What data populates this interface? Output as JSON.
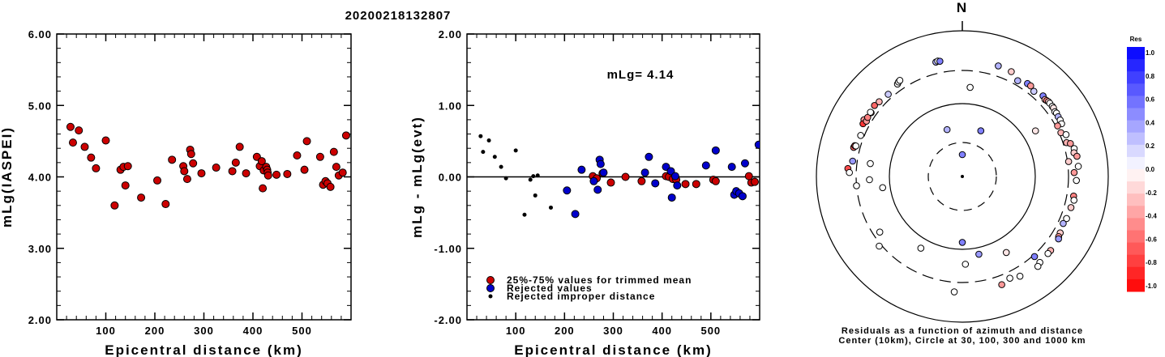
{
  "title": "20200218132807",
  "chart_data": [
    {
      "type": "scatter",
      "xlabel": "Epicentral distance (km)",
      "ylabel": "mLg(IASPEI)",
      "xlim": [
        0,
        600
      ],
      "ylim": [
        2.0,
        6.0
      ],
      "xticks": [
        "100",
        "200",
        "300",
        "400",
        "500"
      ],
      "yticks": [
        "2.00",
        "3.00",
        "4.00",
        "5.00",
        "6.00"
      ],
      "series": [
        {
          "color": "#cc0000",
          "points": [
            [
              28,
              4.7
            ],
            [
              33,
              4.48
            ],
            [
              45,
              4.65
            ],
            [
              57,
              4.42
            ],
            [
              70,
              4.27
            ],
            [
              80,
              4.12
            ],
            [
              100,
              4.51
            ],
            [
              118,
              3.6
            ],
            [
              130,
              4.1
            ],
            [
              136,
              4.14
            ],
            [
              140,
              3.88
            ],
            [
              145,
              4.15
            ],
            [
              172,
              3.71
            ],
            [
              205,
              3.95
            ],
            [
              222,
              3.62
            ],
            [
              235,
              4.24
            ],
            [
              258,
              4.15
            ],
            [
              260,
              4.08
            ],
            [
              266,
              3.97
            ],
            [
              272,
              4.38
            ],
            [
              274,
              4.32
            ],
            [
              278,
              4.19
            ],
            [
              295,
              4.05
            ],
            [
              325,
              4.13
            ],
            [
              358,
              4.08
            ],
            [
              365,
              4.2
            ],
            [
              373,
              4.42
            ],
            [
              386,
              4.05
            ],
            [
              408,
              4.28
            ],
            [
              414,
              4.15
            ],
            [
              418,
              4.22
            ],
            [
              420,
              3.84
            ],
            [
              422,
              4.09
            ],
            [
              427,
              4.14
            ],
            [
              429,
              4.1
            ],
            [
              430,
              4.06
            ],
            [
              431,
              4.02
            ],
            [
              448,
              4.03
            ],
            [
              470,
              4.04
            ],
            [
              490,
              4.3
            ],
            [
              505,
              4.1
            ],
            [
              510,
              4.5
            ],
            [
              537,
              4.28
            ],
            [
              543,
              3.89
            ],
            [
              548,
              3.94
            ],
            [
              552,
              3.91
            ],
            [
              558,
              3.86
            ],
            [
              565,
              4.35
            ],
            [
              570,
              4.14
            ],
            [
              575,
              4.02
            ],
            [
              583,
              4.06
            ],
            [
              590,
              4.58
            ]
          ]
        }
      ]
    },
    {
      "type": "scatter",
      "xlabel": "Epicentral distance (km)",
      "ylabel": "mLg - mLg(evt)",
      "xlim": [
        0,
        600
      ],
      "ylim": [
        -2.0,
        2.0
      ],
      "xticks": [
        "100",
        "200",
        "300",
        "400",
        "500"
      ],
      "yticks": [
        "-2.00",
        "-1.00",
        "0.00",
        "1.00",
        "2.00"
      ],
      "annotation": "mLg= 4.14",
      "series": [
        {
          "name": "25%-75% values for trimmed mean",
          "color": "#cc0000",
          "points": [
            [
              258,
              0.01
            ],
            [
              266,
              -0.02
            ],
            [
              278,
              0.05
            ],
            [
              295,
              -0.08
            ],
            [
              325,
              0.0
            ],
            [
              358,
              -0.06
            ],
            [
              408,
              0.01
            ],
            [
              414,
              0.0
            ],
            [
              422,
              -0.03
            ],
            [
              429,
              -0.04
            ],
            [
              448,
              -0.1
            ],
            [
              470,
              -0.1
            ],
            [
              505,
              -0.04
            ],
            [
              510,
              -0.06
            ],
            [
              583,
              -0.08
            ],
            [
              590,
              -0.07
            ],
            [
              578,
              0.01
            ]
          ]
        },
        {
          "name": "Rejected values",
          "color": "#0000cc",
          "points": [
            [
              205,
              -0.19
            ],
            [
              222,
              -0.52
            ],
            [
              235,
              0.1
            ],
            [
              260,
              -0.06
            ],
            [
              268,
              -0.18
            ],
            [
              272,
              0.24
            ],
            [
              274,
              0.18
            ],
            [
              280,
              0.06
            ],
            [
              365,
              0.06
            ],
            [
              373,
              0.28
            ],
            [
              386,
              -0.09
            ],
            [
              408,
              0.14
            ],
            [
              418,
              0.08
            ],
            [
              420,
              -0.29
            ],
            [
              427,
              0.01
            ],
            [
              431,
              -0.12
            ],
            [
              490,
              0.16
            ],
            [
              510,
              0.37
            ],
            [
              543,
              0.14
            ],
            [
              548,
              -0.25
            ],
            [
              552,
              -0.2
            ],
            [
              558,
              -0.23
            ],
            [
              565,
              -0.27
            ],
            [
              570,
              0.19
            ],
            [
              598,
              0.45
            ]
          ]
        },
        {
          "name": "Rejected improper distance",
          "color": "#000000",
          "points": [
            [
              28,
              0.57
            ],
            [
              33,
              0.35
            ],
            [
              45,
              0.51
            ],
            [
              57,
              0.28
            ],
            [
              70,
              0.14
            ],
            [
              80,
              -0.02
            ],
            [
              100,
              0.37
            ],
            [
              118,
              -0.53
            ],
            [
              130,
              -0.04
            ],
            [
              136,
              0.01
            ],
            [
              140,
              -0.26
            ],
            [
              145,
              0.02
            ],
            [
              172,
              -0.43
            ]
          ]
        }
      ]
    },
    {
      "type": "scatter",
      "subtype": "polar",
      "north_label": "N",
      "caption_1": "Residuals as a function of azimuth and distance",
      "caption_2": "Center (10km), Circle at 30, 100, 300 and 1000 km",
      "colorbar_title": "Res",
      "colorbar_ticks": [
        "1.0",
        "0.8",
        "0.6",
        "0.4",
        "0.2",
        "0.0",
        "-0.2",
        "-0.4",
        "-0.6",
        "-0.8",
        "-1.0"
      ],
      "series": [
        {
          "name": "Residuals",
          "points": [
            {
              "az": 0,
              "dist": 27,
              "res": 0.5
            },
            {
              "az": 342,
              "dist": 66,
              "res": 0.3
            },
            {
              "az": 22,
              "dist": 66,
              "res": 0.5
            },
            {
              "az": 58,
              "dist": 180,
              "res": -0.1
            },
            {
              "az": 5,
              "dist": 200,
              "res": 0.0
            },
            {
              "az": 150,
              "dist": 190,
              "res": -0.1
            },
            {
              "az": 210,
              "dist": 160,
              "res": 0.0
            },
            {
              "az": 262,
              "dist": 145,
              "res": 0.0
            },
            {
              "az": 180,
              "dist": 90,
              "res": 0.5
            },
            {
              "az": 178,
              "dist": 190,
              "res": 0.0
            },
            {
              "az": 168,
              "dist": 140,
              "res": 0.4
            },
            {
              "az": 236,
              "dist": 260,
              "res": 0.0
            },
            {
              "az": 268,
              "dist": 220,
              "res": 0.0
            },
            {
              "az": 278,
              "dist": 220,
              "res": 0.0
            },
            {
              "az": 265,
              "dist": 300,
              "res": 0.0
            },
            {
              "az": 278,
              "dist": 380,
              "res": 0.4
            },
            {
              "az": 285,
              "dist": 410,
              "res": -0.6
            },
            {
              "az": 286,
              "dist": 400,
              "res": -0.7
            },
            {
              "az": 305,
              "dist": 390,
              "res": -0.5
            },
            {
              "az": 309,
              "dist": 420,
              "res": -0.6
            },
            {
              "az": 312,
              "dist": 400,
              "res": -0.3
            },
            {
              "az": 318,
              "dist": 380,
              "res": 0.2
            },
            {
              "az": 325,
              "dist": 420,
              "res": 0.0
            },
            {
              "az": 326,
              "dist": 440,
              "res": 0.0
            },
            {
              "az": 327,
              "dist": 450,
              "res": 0.0
            },
            {
              "az": 347,
              "dist": 500,
              "res": 0.3
            },
            {
              "az": 348,
              "dist": 510,
              "res": 0.0
            },
            {
              "az": 349,
              "dist": 500,
              "res": 0.5
            },
            {
              "az": 18,
              "dist": 480,
              "res": 0.3
            },
            {
              "az": 25,
              "dist": 470,
              "res": -0.2
            },
            {
              "az": 30,
              "dist": 380,
              "res": 0.3
            },
            {
              "az": 35,
              "dist": 430,
              "res": 0.5
            },
            {
              "az": 37,
              "dist": 430,
              "res": -0.4
            },
            {
              "az": 40,
              "dist": 390,
              "res": 0.2
            },
            {
              "az": 45,
              "dist": 440,
              "res": 0.5
            },
            {
              "az": 47,
              "dist": 420,
              "res": -0.3
            },
            {
              "az": 48,
              "dist": 430,
              "res": -0.5
            },
            {
              "az": 49,
              "dist": 440,
              "res": -0.2
            },
            {
              "az": 50,
              "dist": 440,
              "res": 0.0
            },
            {
              "az": 52,
              "dist": 440,
              "res": 0.0
            },
            {
              "az": 53,
              "dist": 440,
              "res": -0.1
            },
            {
              "az": 55,
              "dist": 420,
              "res": 0.0
            },
            {
              "az": 56,
              "dist": 430,
              "res": 0.0
            },
            {
              "az": 58,
              "dist": 420,
              "res": 0.3
            },
            {
              "az": 60,
              "dist": 420,
              "res": 0.0
            },
            {
              "az": 62,
              "dist": 410,
              "res": 0.0
            },
            {
              "az": 62,
              "dist": 330,
              "res": -0.4
            },
            {
              "az": 66,
              "dist": 330,
              "res": -0.3
            },
            {
              "az": 68,
              "dist": 400,
              "res": 0.0
            },
            {
              "az": 72,
              "dist": 360,
              "res": -0.3
            },
            {
              "az": 73,
              "dist": 420,
              "res": -0.4
            },
            {
              "az": 76,
              "dist": 460,
              "res": 0.0
            },
            {
              "az": 78,
              "dist": 440,
              "res": -0.2
            },
            {
              "az": 80,
              "dist": 480,
              "res": -0.4
            },
            {
              "az": 82,
              "dist": 320,
              "res": -0.2
            },
            {
              "az": 85,
              "dist": 480,
              "res": 0.0
            },
            {
              "az": 88,
              "dist": 400,
              "res": -0.4
            },
            {
              "az": 92,
              "dist": 440,
              "res": 0.0
            },
            {
              "az": 100,
              "dist": 420,
              "res": -0.5
            },
            {
              "az": 102,
              "dist": 440,
              "res": 0.0
            },
            {
              "az": 106,
              "dist": 420,
              "res": -0.2
            },
            {
              "az": 112,
              "dist": 410,
              "res": 0.0
            },
            {
              "az": 115,
              "dist": 390,
              "res": 0.3
            },
            {
              "az": 120,
              "dist": 420,
              "res": -0.2
            },
            {
              "az": 122,
              "dist": 430,
              "res": -0.4
            },
            {
              "az": 123,
              "dist": 450,
              "res": 0.4
            },
            {
              "az": 130,
              "dist": 460,
              "res": -0.3
            },
            {
              "az": 132,
              "dist": 460,
              "res": 0.0
            },
            {
              "az": 138,
              "dist": 470,
              "res": 0.0
            },
            {
              "az": 140,
              "dist": 500,
              "res": 0.0
            },
            {
              "az": 150,
              "dist": 460,
              "res": 0.0
            },
            {
              "az": 155,
              "dist": 410,
              "res": 0.0
            },
            {
              "az": 160,
              "dist": 460,
              "res": -0.4
            },
            {
              "az": 138,
              "dist": 330,
              "res": 0.5
            },
            {
              "az": 184,
              "dist": 470,
              "res": 0.0
            },
            {
              "az": 230,
              "dist": 340,
              "res": 0.0
            },
            {
              "az": 300,
              "dist": 430,
              "res": -0.4
            },
            {
              "az": 298,
              "dist": 410,
              "res": -0.8
            },
            {
              "az": 274,
              "dist": 450,
              "res": -0.7
            },
            {
              "az": 272,
              "dist": 420,
              "res": 0.0
            },
            {
              "az": 286,
              "dist": 380,
              "res": 0.0
            },
            {
              "az": 292,
              "dist": 360,
              "res": 0.0
            },
            {
              "az": 300,
              "dist": 380,
              "res": -0.4
            },
            {
              "az": 302,
              "dist": 395,
              "res": -0.5
            },
            {
              "az": 305,
              "dist": 405,
              "res": 0.0
            }
          ]
        }
      ]
    }
  ]
}
